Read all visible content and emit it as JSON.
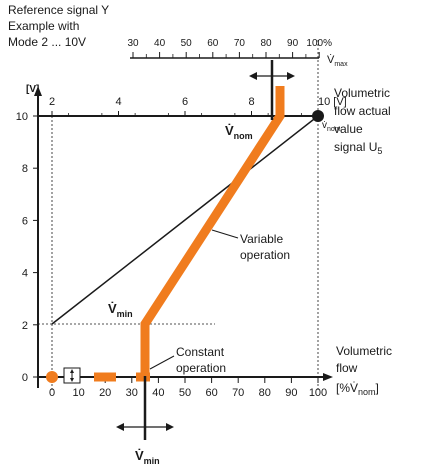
{
  "top_left_caption": [
    "Reference signal Y",
    "Example with",
    "Mode 2 ... 10V"
  ],
  "top_scale": {
    "ticks": [
      "30",
      "40",
      "50",
      "60",
      "70",
      "80",
      "90",
      "100%"
    ],
    "symbol": "V̇",
    "subscript": "max"
  },
  "voltage_axis": {
    "ticks": [
      "2",
      "4",
      "6",
      "8",
      "10 [V]"
    ],
    "unit": "[V]"
  },
  "y_axis": {
    "ticks": [
      "0",
      "2",
      "4",
      "6",
      "8",
      "10"
    ]
  },
  "x_axis": {
    "ticks": [
      "0",
      "10",
      "20",
      "30",
      "40",
      "50",
      "60",
      "70",
      "80",
      "90",
      "100"
    ],
    "title_lines": [
      "Volumetric",
      "flow"
    ],
    "unit_prefix": "[%V̇",
    "unit_sub": "nom",
    "unit_suffix": "]"
  },
  "right_label": {
    "lines": [
      "Volumetric",
      "flow actual",
      "value"
    ],
    "signal": "signal U",
    "signal_sub": "5"
  },
  "labels": {
    "vnom_symbol": "V̇",
    "vnom_sub": "nom",
    "vnom_right_symbol": "v̇",
    "vnom_right_sub": "nom",
    "vmin_symbol": "V̇",
    "vmin_sub": "min",
    "vmin_bottom_symbol": "V̇",
    "vmin_bottom_sub": "min",
    "variable": [
      "Variable",
      "operation"
    ],
    "constant": [
      "Constant",
      "operation"
    ]
  },
  "colors": {
    "accent": "#f07c1e",
    "ink": "#1a1a1a"
  }
}
